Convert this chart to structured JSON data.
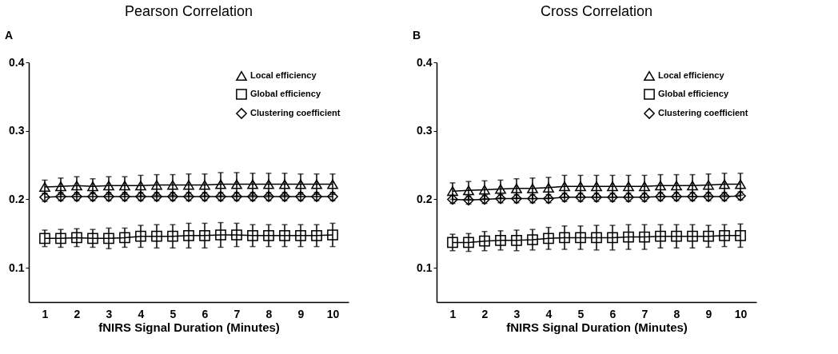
{
  "chart_data": [
    {
      "type": "line",
      "title": "Pearson Correlation",
      "xlabel": "fNIRS Signal Duration (Minutes)",
      "annotations": [
        "A"
      ],
      "x": [
        1,
        1.5,
        2,
        2.5,
        3,
        3.5,
        4,
        4.5,
        5,
        5.5,
        6,
        6.5,
        7,
        7.5,
        8,
        8.5,
        9,
        9.5,
        10
      ],
      "xlim": [
        0.5,
        10.5
      ],
      "xticks": [
        1,
        2,
        3,
        4,
        5,
        6,
        7,
        8,
        9,
        10
      ],
      "ylim": [
        0.05,
        0.4
      ],
      "yticks": [
        0.1,
        0.2,
        0.3,
        0.4
      ],
      "legend": "top right",
      "grid": false,
      "line_style": "solid",
      "series": [
        {
          "name": "Local efficiency",
          "color": "#000000",
          "marker": "triangle",
          "values": [
            0.218,
            0.219,
            0.22,
            0.219,
            0.22,
            0.22,
            0.22,
            0.221,
            0.221,
            0.221,
            0.221,
            0.222,
            0.222,
            0.222,
            0.222,
            0.222,
            0.222,
            0.222,
            0.222
          ],
          "errors": [
            0.01,
            0.012,
            0.013,
            0.011,
            0.013,
            0.013,
            0.015,
            0.015,
            0.015,
            0.016,
            0.016,
            0.017,
            0.017,
            0.016,
            0.016,
            0.016,
            0.015,
            0.015,
            0.015
          ]
        },
        {
          "name": "Global efficiency",
          "color": "#000000",
          "marker": "square",
          "values": [
            0.143,
            0.143,
            0.144,
            0.143,
            0.143,
            0.144,
            0.146,
            0.146,
            0.146,
            0.147,
            0.147,
            0.148,
            0.148,
            0.147,
            0.147,
            0.147,
            0.147,
            0.147,
            0.148
          ],
          "errors": [
            0.012,
            0.013,
            0.013,
            0.013,
            0.015,
            0.014,
            0.016,
            0.017,
            0.017,
            0.018,
            0.018,
            0.018,
            0.017,
            0.016,
            0.016,
            0.016,
            0.016,
            0.016,
            0.017
          ]
        },
        {
          "name": "Clustering coefficient",
          "color": "#000000",
          "marker": "diamond",
          "values": [
            0.203,
            0.204,
            0.204,
            0.204,
            0.204,
            0.204,
            0.204,
            0.204,
            0.204,
            0.204,
            0.204,
            0.204,
            0.204,
            0.204,
            0.204,
            0.204,
            0.204,
            0.204,
            0.204
          ],
          "errors": [
            0.006,
            0.006,
            0.006,
            0.006,
            0.006,
            0.006,
            0.006,
            0.006,
            0.006,
            0.006,
            0.006,
            0.006,
            0.006,
            0.006,
            0.006,
            0.006,
            0.006,
            0.006,
            0.006
          ]
        }
      ]
    },
    {
      "type": "line",
      "title": "Cross Correlation",
      "xlabel": "fNIRS Signal Duration (Minutes)",
      "annotations": [
        "B"
      ],
      "x": [
        1,
        1.5,
        2,
        2.5,
        3,
        3.5,
        4,
        4.5,
        5,
        5.5,
        6,
        6.5,
        7,
        7.5,
        8,
        8.5,
        9,
        9.5,
        10
      ],
      "xlim": [
        0.5,
        10.5
      ],
      "xticks": [
        1,
        2,
        3,
        4,
        5,
        6,
        7,
        8,
        9,
        10
      ],
      "ylim": [
        0.05,
        0.4
      ],
      "yticks": [
        0.1,
        0.2,
        0.3,
        0.4
      ],
      "legend": "top right",
      "grid": false,
      "line_style": "solid",
      "series": [
        {
          "name": "Local efficiency",
          "color": "#000000",
          "marker": "triangle",
          "values": [
            0.212,
            0.213,
            0.214,
            0.215,
            0.216,
            0.216,
            0.217,
            0.219,
            0.219,
            0.219,
            0.219,
            0.219,
            0.219,
            0.22,
            0.22,
            0.22,
            0.221,
            0.222,
            0.222
          ],
          "errors": [
            0.012,
            0.013,
            0.013,
            0.013,
            0.014,
            0.015,
            0.015,
            0.016,
            0.016,
            0.016,
            0.016,
            0.016,
            0.016,
            0.016,
            0.016,
            0.016,
            0.016,
            0.016,
            0.016
          ]
        },
        {
          "name": "Global efficiency",
          "color": "#000000",
          "marker": "square",
          "values": [
            0.137,
            0.137,
            0.139,
            0.14,
            0.14,
            0.141,
            0.143,
            0.144,
            0.144,
            0.144,
            0.144,
            0.145,
            0.145,
            0.146,
            0.146,
            0.146,
            0.146,
            0.147,
            0.147
          ],
          "errors": [
            0.012,
            0.013,
            0.014,
            0.014,
            0.015,
            0.015,
            0.016,
            0.017,
            0.017,
            0.018,
            0.018,
            0.018,
            0.018,
            0.017,
            0.017,
            0.017,
            0.016,
            0.016,
            0.017
          ]
        },
        {
          "name": "Clustering coefficient",
          "color": "#000000",
          "marker": "diamond",
          "values": [
            0.2,
            0.199,
            0.2,
            0.201,
            0.201,
            0.201,
            0.201,
            0.203,
            0.203,
            0.203,
            0.203,
            0.203,
            0.203,
            0.204,
            0.204,
            0.204,
            0.204,
            0.204,
            0.205
          ],
          "errors": [
            0.006,
            0.006,
            0.006,
            0.006,
            0.006,
            0.006,
            0.006,
            0.006,
            0.006,
            0.006,
            0.006,
            0.006,
            0.006,
            0.006,
            0.006,
            0.006,
            0.006,
            0.006,
            0.006
          ]
        }
      ]
    }
  ]
}
